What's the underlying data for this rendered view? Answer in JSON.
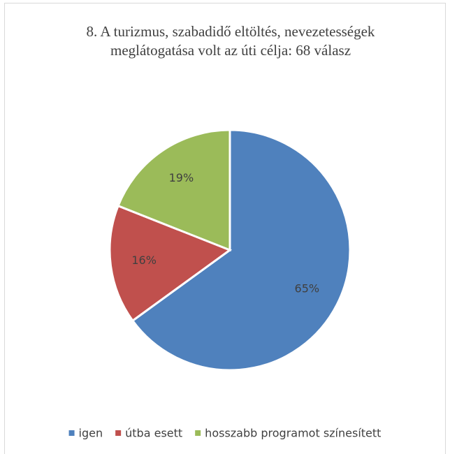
{
  "chart_data": {
    "type": "pie",
    "title": "8. A turizmus, szabadidő eltöltés, nevezetességek meglátogatása volt az úti célja: 68 válasz",
    "categories": [
      "igen",
      "útba esett",
      "hosszabb programot színesített"
    ],
    "values": [
      65,
      16,
      19
    ],
    "value_labels": [
      "65%",
      "16%",
      "19%"
    ],
    "colors": [
      "#4f81bd",
      "#c0504d",
      "#9bbb59"
    ],
    "legend": "bottom"
  }
}
